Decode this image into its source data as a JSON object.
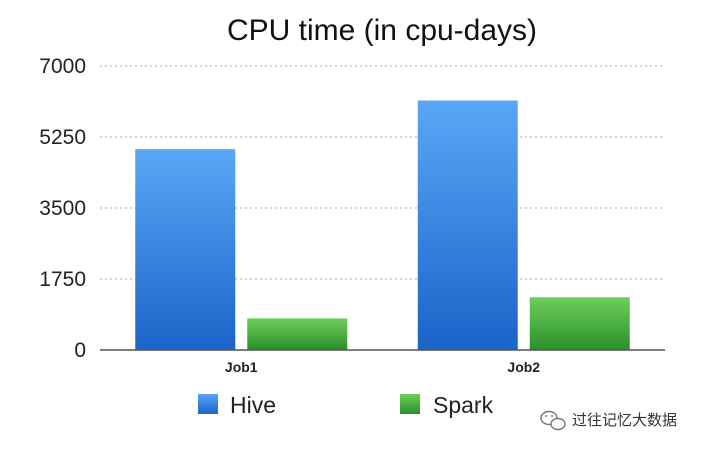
{
  "chart_data": {
    "type": "bar",
    "title": "CPU time (in cpu-days)",
    "categories": [
      "Job1",
      "Job2"
    ],
    "series": [
      {
        "name": "Hive",
        "values": [
          4950,
          6150
        ],
        "color": "#2f7fe0"
      },
      {
        "name": "Spark",
        "values": [
          780,
          1300
        ],
        "color": "#3aa83a"
      }
    ],
    "yticks": [
      "0",
      "1750",
      "3500",
      "5250",
      "7000"
    ],
    "ylim": [
      0,
      7000
    ],
    "grid": true,
    "legend_position": "bottom"
  },
  "watermark": {
    "text": "过往记忆大数据",
    "icon": "wechat-icon"
  }
}
